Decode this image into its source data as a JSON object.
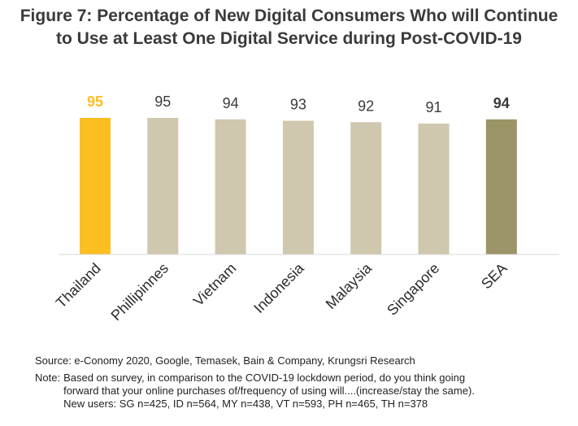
{
  "title": {
    "line1": "Figure 7: Percentage of New Digital Consumers  Who will Continue",
    "line2": "to Use at Least One Digital Service during Post-COVID-19"
  },
  "chart_data": {
    "type": "bar",
    "categories": [
      "Thailand",
      "Phillipinnes",
      "Vietnam",
      "Indonesia",
      "Malaysia",
      "Singapore",
      "SEA"
    ],
    "values": [
      95,
      95,
      94,
      93,
      92,
      91,
      94
    ],
    "value_labels": [
      "95",
      "95",
      "94",
      "93",
      "92",
      "91",
      "94"
    ],
    "ylim": [
      0,
      100
    ],
    "grid": false,
    "legend": "none",
    "colors": {
      "Thailand": "#FCBF22",
      "default": "#CFC7AE",
      "SEA": "#9B9466"
    },
    "label_colors": {
      "Thailand": "#FCBF22",
      "default": "#3a3a3a",
      "SEA": "#3a3a3a"
    },
    "bold_labels": [
      "Thailand",
      "SEA"
    ]
  },
  "footnotes": {
    "source": "Source: e-Conomy 2020, Google, Temasek, Bain & Company,  Krungsri Research",
    "note_label": "Note:",
    "note_lines": [
      "Based on survey, in comparison to the COVID-19 lockdown period, do you think going",
      "forward that your online purchases of/frequency of using will....(increase/stay the same).",
      "New users: SG n=425, ID n=564, MY n=438, VT n=593, PH n=465, TH n=378"
    ]
  }
}
